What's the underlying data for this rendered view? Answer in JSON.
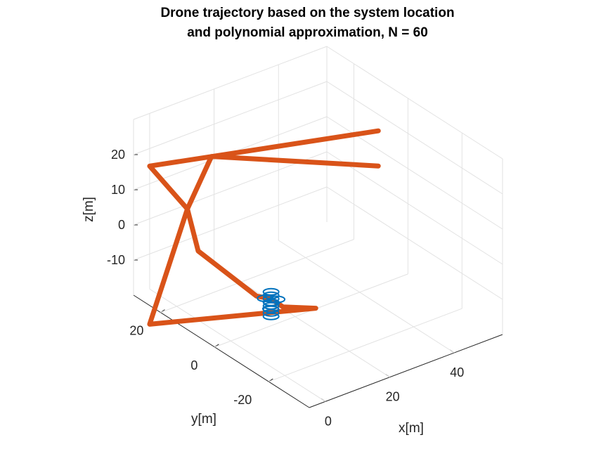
{
  "chart_data": {
    "type": "line",
    "projection": "3d",
    "title": [
      "Drone trajectory based on the system location",
      "and polynomial approximation, N = 60"
    ],
    "xlabel": "x[m]",
    "ylabel": "y[m]",
    "zlabel": "z[m]",
    "xlim": [
      -5,
      55
    ],
    "ylim": [
      -35,
      30
    ],
    "zlim": [
      -20,
      30
    ],
    "xticks": [
      "0",
      "20",
      "40"
    ],
    "yticks": [
      "20",
      "0",
      "-20"
    ],
    "zticks": [
      "20",
      "10",
      "0",
      "-10"
    ],
    "grid": true,
    "series": [
      {
        "color": "#D95319",
        "style": "thick-line",
        "points": [
          [
            50,
            5,
            20
          ],
          [
            0,
            30,
            15
          ],
          [
            5,
            22,
            5
          ],
          [
            5,
            18,
            -5
          ],
          [
            8,
            0,
            -10
          ],
          [
            10,
            -3,
            -10
          ],
          [
            12,
            -5,
            -12
          ],
          [
            18,
            -10,
            -12
          ],
          [
            0,
            30,
            -30
          ],
          [
            5,
            22,
            5
          ],
          [
            15,
            25,
            15
          ],
          [
            50,
            5,
            10
          ]
        ]
      },
      {
        "color": "#0072BD",
        "style": "markers",
        "marker": "o",
        "points": [
          [
            10,
            -3,
            -8
          ],
          [
            10,
            -3,
            -9
          ],
          [
            10,
            -3,
            -10
          ],
          [
            10,
            -3,
            -11
          ],
          [
            10,
            -3,
            -12
          ],
          [
            10,
            -3,
            -13
          ],
          [
            10,
            -3,
            -14
          ],
          [
            10,
            -3,
            -15
          ],
          [
            11,
            -4,
            -10
          ],
          [
            9,
            -2,
            -10
          ],
          [
            11,
            -2,
            -12
          ],
          [
            9,
            -4,
            -12
          ]
        ]
      }
    ]
  }
}
